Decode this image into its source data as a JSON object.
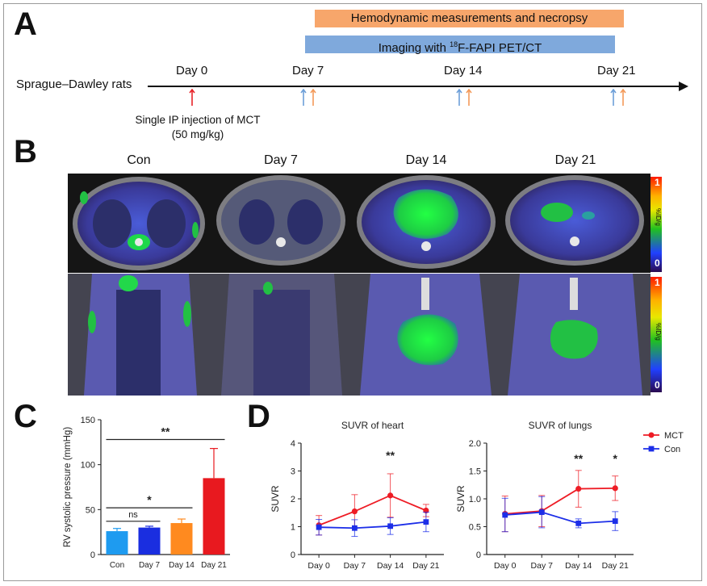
{
  "panel_labels": {
    "a": "A",
    "b": "B",
    "c": "C",
    "d": "D"
  },
  "panelA": {
    "bar_hemodynamic": "Hemodynamic measurements and necropsy",
    "bar_imaging_prefix": "Imaging with ",
    "bar_imaging_sup": "18",
    "bar_imaging_suffix": "F-FAPI PET/CT",
    "rat_label": "Sprague–Dawley rats",
    "days": [
      "Day 0",
      "Day 7",
      "Day 14",
      "Day 21"
    ],
    "note_line1": "Single IP injection of MCT",
    "note_line2": "(50 mg/kg)",
    "colors": {
      "injection": "#e8242a",
      "imaging": "#6d9fd8",
      "hemodynamic": "#f39a5a"
    }
  },
  "panelB": {
    "columns": [
      "Con",
      "Day 7",
      "Day 14",
      "Day 21"
    ],
    "scale_max": "1",
    "scale_min": "0",
    "scale_unit": "%ID/g"
  },
  "chart_data": [
    {
      "type": "bar",
      "panel": "C",
      "ylabel": "RV systolic pressure (mmHg)",
      "categories": [
        "Con",
        "Day 7",
        "Day 14",
        "Day 21"
      ],
      "values": [
        26,
        30,
        35,
        85
      ],
      "errors": [
        3,
        1.5,
        4.5,
        33
      ],
      "colors": [
        "#1e9bf0",
        "#1a2ee0",
        "#ff8a1f",
        "#e8191f"
      ],
      "ylim": [
        0,
        150
      ],
      "yticks": [
        "0",
        "50",
        "100",
        "150"
      ],
      "significance": [
        {
          "from": "Con",
          "to": "Day 7",
          "label": "ns"
        },
        {
          "from": "Con",
          "to": "Day 14",
          "label": "*"
        },
        {
          "from": "Con",
          "to": "Day 21",
          "label": "**"
        }
      ]
    },
    {
      "type": "line",
      "panel": "D",
      "title": "SUVR of heart",
      "ylabel": "SUVR",
      "categories": [
        "Day 0",
        "Day 7",
        "Day 14",
        "Day 21"
      ],
      "ylim": [
        0,
        4
      ],
      "yticks": [
        "0",
        "1",
        "2",
        "3",
        "4"
      ],
      "series": [
        {
          "name": "MCT",
          "color": "#ee1c25",
          "values": [
            1.05,
            1.55,
            2.12,
            1.58
          ],
          "errors": [
            0.35,
            0.6,
            0.78,
            0.22
          ]
        },
        {
          "name": "Con",
          "color": "#1c2ee8",
          "values": [
            0.98,
            0.95,
            1.02,
            1.17
          ],
          "errors": [
            0.28,
            0.3,
            0.3,
            0.35
          ]
        }
      ],
      "annotations": [
        {
          "category": "Day 14",
          "label": "**"
        }
      ]
    },
    {
      "type": "line",
      "panel": "D",
      "title": "SUVR of lungs",
      "ylabel": "SUVR",
      "categories": [
        "Day 0",
        "Day 7",
        "Day 14",
        "Day 21"
      ],
      "ylim": [
        0,
        2.0
      ],
      "yticks": [
        "0",
        "0.5",
        "1.0",
        "1.5",
        "2.0"
      ],
      "series": [
        {
          "name": "MCT",
          "color": "#ee1c25",
          "values": [
            0.73,
            0.78,
            1.18,
            1.19
          ],
          "errors": [
            0.32,
            0.28,
            0.33,
            0.22
          ]
        },
        {
          "name": "Con",
          "color": "#1c2ee8",
          "values": [
            0.71,
            0.76,
            0.56,
            0.6
          ],
          "errors": [
            0.3,
            0.28,
            0.08,
            0.17
          ]
        }
      ],
      "annotations": [
        {
          "category": "Day 14",
          "label": "**"
        },
        {
          "category": "Day 21",
          "label": "*"
        }
      ],
      "legend": [
        {
          "name": "MCT",
          "color": "#ee1c25"
        },
        {
          "name": "Con",
          "color": "#1c2ee8"
        }
      ]
    }
  ]
}
